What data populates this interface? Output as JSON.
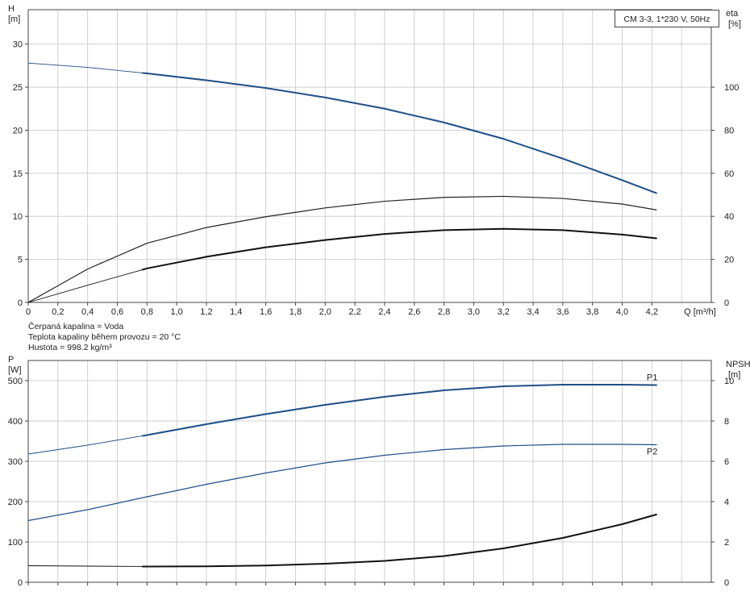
{
  "chart_data": [
    {
      "type": "line",
      "title": "CM 3-3, 1*230 V, 50Hz",
      "xlabel": "Q [m³/h]",
      "ylabel_left": [
        "H",
        "[m]"
      ],
      "ylabel_right": [
        "eta",
        "[%]"
      ],
      "xlim": [
        0,
        4.6
      ],
      "ylim_left": [
        0,
        34
      ],
      "ylim_right": [
        0,
        136
      ],
      "x_ticks": [
        "0",
        "0,2",
        "0,4",
        "0,6",
        "0,8",
        "1,0",
        "1,2",
        "1,4",
        "1,6",
        "1,8",
        "2,0",
        "2,2",
        "2,4",
        "2,6",
        "2,8",
        "3,0",
        "3,2",
        "3,4",
        "3,6",
        "3,8",
        "4,0",
        "4,2"
      ],
      "y_ticks_left": [
        "0",
        "5",
        "10",
        "15",
        "20",
        "25",
        "30"
      ],
      "y_ticks_right": [
        "0",
        "20",
        "40",
        "60",
        "80",
        "100"
      ],
      "grid": true,
      "series": [
        {
          "key": "H",
          "axis": "left",
          "color": "#1f4e86",
          "width": 2,
          "thin_until": 0.77,
          "x": [
            0,
            0.4,
            0.8,
            1.2,
            1.6,
            2.0,
            2.4,
            2.8,
            3.2,
            3.6,
            4.0,
            4.23
          ],
          "y": [
            27.8,
            27.3,
            26.6,
            25.8,
            24.9,
            23.8,
            22.5,
            20.9,
            19.0,
            16.7,
            14.2,
            12.7
          ]
        },
        {
          "key": "eta_total",
          "axis": "right",
          "color": "#222222",
          "width": 1.2,
          "thin_until": 0,
          "x": [
            0,
            0.4,
            0.8,
            1.2,
            1.6,
            2.0,
            2.4,
            2.8,
            3.2,
            3.6,
            4.0,
            4.23
          ],
          "y": [
            0,
            15.5,
            27.5,
            34.8,
            39.8,
            43.9,
            47.0,
            48.8,
            49.3,
            48.3,
            45.7,
            43.0
          ]
        },
        {
          "key": "eta_pump",
          "axis": "right",
          "color": "#111111",
          "width": 2,
          "thin_until": 0.77,
          "x": [
            0,
            0.4,
            0.8,
            1.2,
            1.6,
            2.0,
            2.4,
            2.8,
            3.2,
            3.6,
            4.0,
            4.23
          ],
          "y": [
            0,
            8.0,
            15.8,
            21.2,
            25.6,
            29.0,
            31.8,
            33.6,
            34.2,
            33.6,
            31.5,
            29.8
          ]
        }
      ]
    },
    {
      "type": "line",
      "title": "",
      "xlabel": "",
      "ylabel_left": [
        "P",
        "[W]"
      ],
      "ylabel_right": [
        "NPSH",
        "[m]"
      ],
      "xlim": [
        0,
        4.6
      ],
      "ylim_left": [
        0,
        550
      ],
      "ylim_right": [
        0,
        11
      ],
      "y_ticks_left": [
        "0",
        "100",
        "200",
        "300",
        "400",
        "500"
      ],
      "y_ticks_right": [
        "0",
        "2",
        "4",
        "6",
        "8",
        "10"
      ],
      "grid": true,
      "series": [
        {
          "key": "P1",
          "name": "P1",
          "axis": "left",
          "color": "#1f4e86",
          "width": 2,
          "thin_until": 0.77,
          "x": [
            0,
            0.4,
            0.8,
            1.2,
            1.6,
            2.0,
            2.4,
            2.8,
            3.2,
            3.6,
            4.0,
            4.23
          ],
          "y": [
            318,
            340,
            365,
            392,
            417,
            440,
            460,
            476,
            486,
            490,
            490,
            489
          ]
        },
        {
          "key": "P2",
          "name": "P2",
          "axis": "left",
          "color": "#1f4e86",
          "width": 1.2,
          "thin_until": 0,
          "x": [
            0,
            0.4,
            0.8,
            1.2,
            1.6,
            2.0,
            2.4,
            2.8,
            3.2,
            3.6,
            4.0,
            4.23
          ],
          "y": [
            153,
            180,
            212,
            243,
            271,
            296,
            315,
            329,
            338,
            342,
            342,
            341
          ]
        },
        {
          "key": "NPSH",
          "axis": "right",
          "color": "#111111",
          "width": 2,
          "thin_until": 0.77,
          "x": [
            0,
            0.4,
            0.8,
            1.2,
            1.6,
            2.0,
            2.4,
            2.8,
            3.2,
            3.6,
            4.0,
            4.23
          ],
          "y": [
            0.82,
            0.8,
            0.78,
            0.79,
            0.83,
            0.92,
            1.06,
            1.3,
            1.68,
            2.2,
            2.88,
            3.36
          ]
        }
      ]
    }
  ],
  "fluid_info": [
    "Čerpaná kapalina = Voda",
    "Teplota kapaliny během provozu = 20 °C",
    "Hustota = 998.2 kg/m³"
  ]
}
